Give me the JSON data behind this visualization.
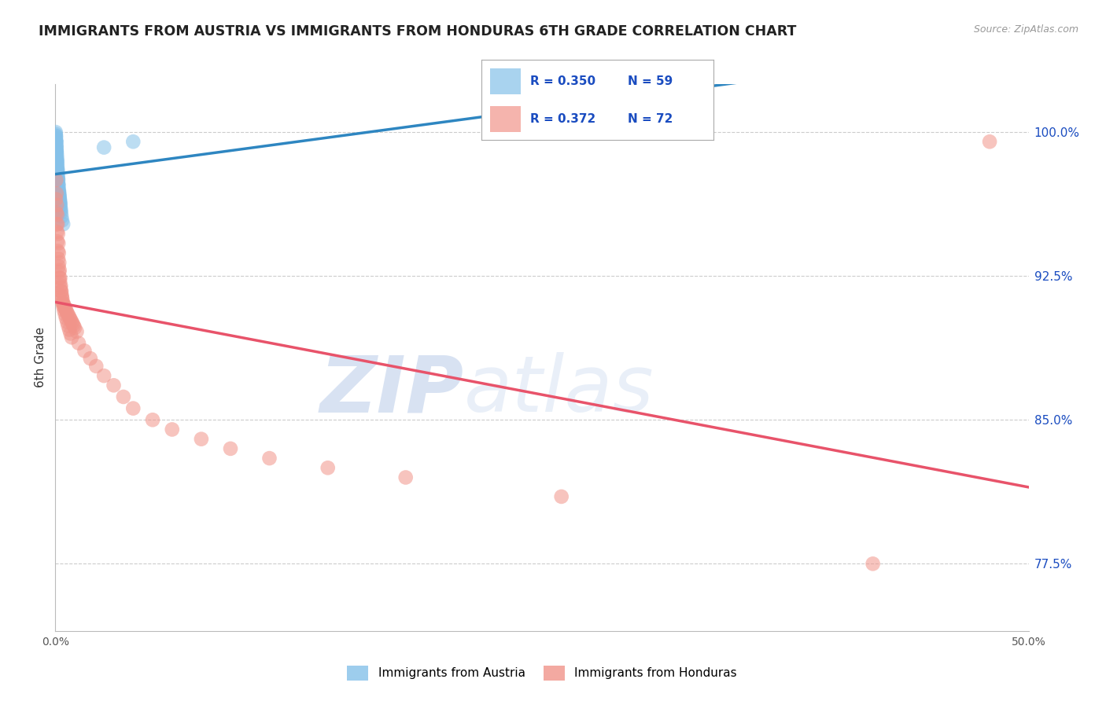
{
  "title": "IMMIGRANTS FROM AUSTRIA VS IMMIGRANTS FROM HONDURAS 6TH GRADE CORRELATION CHART",
  "source": "Source: ZipAtlas.com",
  "ylabel": "6th Grade",
  "xlim": [
    0.0,
    50.0
  ],
  "ylim": [
    74.0,
    102.5
  ],
  "y_ticks": [
    77.5,
    85.0,
    92.5,
    100.0
  ],
  "y_tick_labels": [
    "77.5%",
    "85.0%",
    "92.5%",
    "100.0%"
  ],
  "austria_color": "#85C1E9",
  "honduras_color": "#F1948A",
  "austria_line_color": "#2E86C1",
  "honduras_line_color": "#E8536A",
  "austria_R": 0.35,
  "austria_N": 59,
  "honduras_R": 0.372,
  "honduras_N": 72,
  "legend_R_color": "#1A4CC0",
  "background_color": "#FFFFFF",
  "austria_x": [
    0.02,
    0.03,
    0.04,
    0.05,
    0.06,
    0.07,
    0.08,
    0.09,
    0.1,
    0.11,
    0.12,
    0.13,
    0.14,
    0.15,
    0.16,
    0.17,
    0.18,
    0.19,
    0.2,
    0.21,
    0.22,
    0.23,
    0.24,
    0.25,
    0.26,
    0.28,
    0.3,
    0.32,
    0.35,
    0.4,
    0.02,
    0.03,
    0.04,
    0.05,
    0.06,
    0.07,
    0.08,
    0.09,
    0.1,
    0.11,
    0.12,
    0.13,
    0.14,
    0.15,
    0.17,
    0.19,
    0.21,
    0.23,
    0.25,
    0.27,
    0.02,
    0.03,
    0.04,
    0.05,
    0.06,
    0.08,
    0.1,
    2.5,
    4.0
  ],
  "austria_y": [
    99.8,
    99.6,
    99.5,
    99.3,
    99.1,
    98.9,
    98.7,
    98.5,
    98.3,
    98.1,
    98.0,
    97.8,
    97.6,
    97.5,
    97.3,
    97.2,
    97.0,
    96.9,
    96.8,
    96.7,
    96.6,
    96.5,
    96.4,
    96.3,
    96.2,
    96.0,
    95.8,
    95.6,
    95.4,
    95.2,
    99.9,
    99.7,
    99.5,
    99.2,
    99.0,
    98.8,
    98.6,
    98.4,
    98.2,
    97.9,
    97.7,
    97.5,
    97.3,
    97.1,
    96.9,
    96.7,
    96.5,
    96.3,
    96.1,
    95.9,
    100.0,
    99.8,
    99.5,
    99.3,
    99.0,
    98.5,
    98.0,
    99.2,
    99.5
  ],
  "honduras_x": [
    0.03,
    0.05,
    0.07,
    0.09,
    0.11,
    0.13,
    0.15,
    0.17,
    0.19,
    0.21,
    0.24,
    0.27,
    0.3,
    0.33,
    0.36,
    0.4,
    0.44,
    0.48,
    0.52,
    0.56,
    0.6,
    0.65,
    0.7,
    0.75,
    0.8,
    0.85,
    0.9,
    0.95,
    1.0,
    1.1,
    0.04,
    0.06,
    0.08,
    0.1,
    0.12,
    0.14,
    0.16,
    0.18,
    0.2,
    0.22,
    0.25,
    0.28,
    0.31,
    0.34,
    0.37,
    0.41,
    0.45,
    0.5,
    0.55,
    0.61,
    0.66,
    0.72,
    0.78,
    0.84,
    1.2,
    1.5,
    1.8,
    2.1,
    2.5,
    3.0,
    3.5,
    4.0,
    5.0,
    6.0,
    7.5,
    9.0,
    11.0,
    14.0,
    18.0,
    26.0,
    42.0,
    48.0
  ],
  "honduras_y": [
    96.5,
    95.8,
    95.2,
    94.8,
    94.3,
    93.8,
    93.4,
    93.0,
    92.7,
    92.4,
    92.2,
    91.9,
    91.7,
    91.5,
    91.3,
    91.1,
    91.0,
    90.9,
    90.8,
    90.7,
    90.6,
    90.5,
    90.4,
    90.3,
    90.2,
    90.1,
    90.0,
    89.9,
    89.8,
    89.6,
    97.5,
    96.8,
    96.2,
    95.7,
    95.2,
    94.7,
    94.2,
    93.7,
    93.2,
    92.8,
    92.4,
    92.0,
    91.7,
    91.4,
    91.1,
    90.9,
    90.7,
    90.5,
    90.3,
    90.1,
    89.9,
    89.7,
    89.5,
    89.3,
    89.0,
    88.6,
    88.2,
    87.8,
    87.3,
    86.8,
    86.2,
    85.6,
    85.0,
    84.5,
    84.0,
    83.5,
    83.0,
    82.5,
    82.0,
    81.0,
    77.5,
    99.5
  ]
}
